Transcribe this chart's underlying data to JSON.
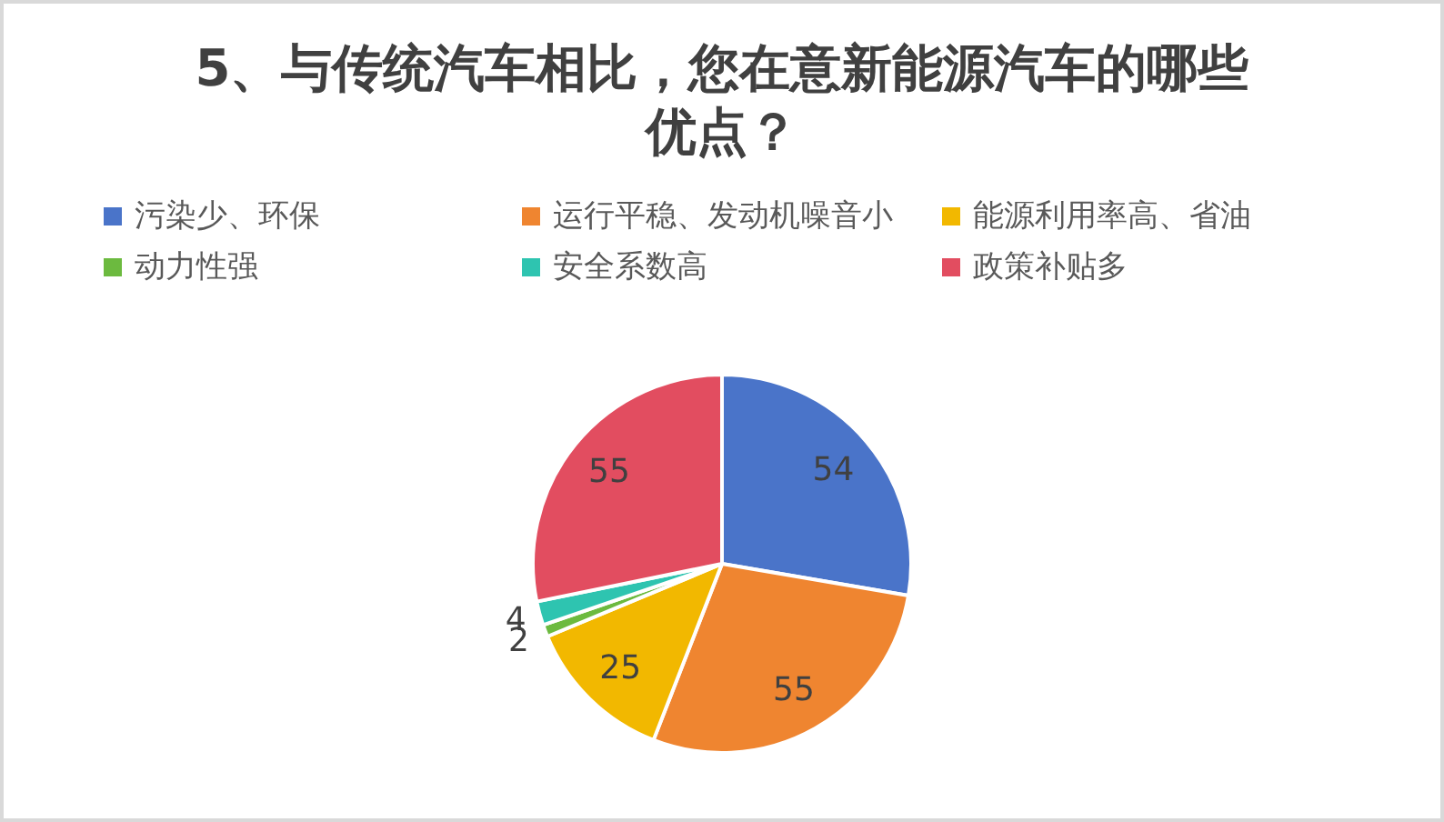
{
  "chart_data": {
    "type": "pie",
    "title": "5、与传统汽车相比，您在意新能源汽车的哪些优点？",
    "categories": [
      "污染少、环保",
      "运行平稳、发动机噪音小",
      "能源利用率高、省油",
      "动力性强",
      "安全系数高",
      "政策补贴多"
    ],
    "values": [
      54,
      55,
      25,
      2,
      4,
      55
    ],
    "colors": [
      "#4a74c9",
      "#ef8530",
      "#f2b800",
      "#6cba3f",
      "#2ec4b0",
      "#e24d60"
    ],
    "legend": "top",
    "data_labels": true
  }
}
